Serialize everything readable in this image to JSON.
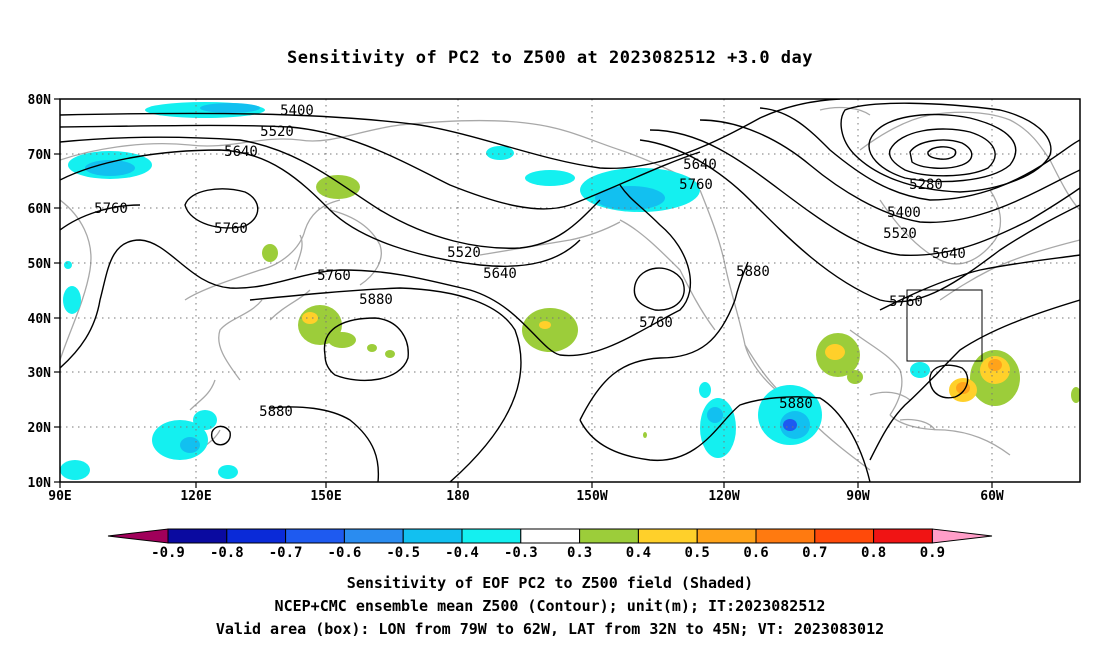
{
  "title": "Sensitivity of PC2 to Z500 at 2023082512 +3.0 day",
  "lat_labels": [
    "80N",
    "70N",
    "60N",
    "50N",
    "40N",
    "30N",
    "20N",
    "10N"
  ],
  "lon_labels": [
    "90E",
    "120E",
    "150E",
    "180",
    "150W",
    "120W",
    "90W",
    "60W"
  ],
  "contour_labels": [
    "5400",
    "5520",
    "5640",
    "5760",
    "5760",
    "5520",
    "5640",
    "5640",
    "5760",
    "5280",
    "5400",
    "5520",
    "5640",
    "5760",
    "5760",
    "5880",
    "5880",
    "5760",
    "5880",
    "5880"
  ],
  "colorbar": {
    "labels": [
      "-0.9",
      "-0.8",
      "-0.7",
      "-0.6",
      "-0.5",
      "-0.4",
      "-0.3",
      "0.3",
      "0.4",
      "0.5",
      "0.6",
      "0.7",
      "0.8",
      "0.9"
    ],
    "colors": [
      "#a0005a",
      "#0a0aa0",
      "#0a2ad8",
      "#1e5af0",
      "#2a8cf0",
      "#12c0f0",
      "#14f0f0",
      "#ffffff",
      "#9ccd3a",
      "#ffd02a",
      "#ffa31a",
      "#ff7a10",
      "#ff4a0a",
      "#f01414",
      "#ff9ec8"
    ]
  },
  "footer": {
    "line1": "Sensitivity of EOF PC2 to Z500 field (Shaded)",
    "line2": "NCEP+CMC ensemble mean Z500 (Contour); unit(m); IT:2023082512",
    "line3": "Valid area (box): LON from 79W to 62W, LAT from 32N to 45N; VT: 2023083012"
  }
}
